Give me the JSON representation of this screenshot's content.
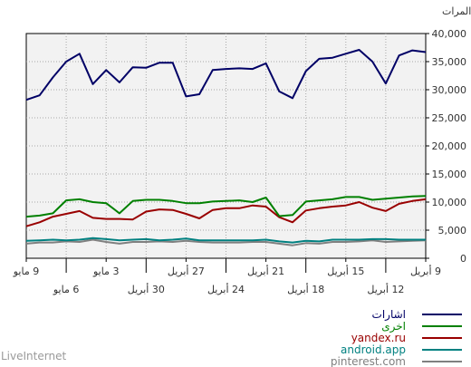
{
  "chart_data": {
    "type": "line",
    "ylabel": "المرات",
    "ylim": [
      0,
      40000
    ],
    "yticks": [
      0,
      5000,
      10000,
      15000,
      20000,
      25000,
      30000,
      35000,
      40000
    ],
    "ytick_labels": [
      "0",
      "5,000",
      "10,000",
      "15,000",
      "20,000",
      "25,000",
      "30,000",
      "35,000",
      "40,000"
    ],
    "xtick_labels_top": [
      "9 مايو",
      "3 مايو",
      "27 أبريل",
      "21 أبريل",
      "15 أبريل",
      "9 أبريل"
    ],
    "xtick_labels_bottom": [
      "6 مايو",
      "30 أبريل",
      "24 أبريل",
      "18 أبريل",
      "12 أبريل"
    ],
    "grid": true,
    "legend_position": "bottom-right",
    "series": [
      {
        "name": "اشارات",
        "color": "#000066",
        "values": [
          28200,
          29000,
          32200,
          35000,
          36400,
          31000,
          33500,
          31300,
          34000,
          33900,
          34800,
          34800,
          28800,
          29200,
          33500,
          33700,
          33800,
          33700,
          34700,
          29700,
          28500,
          33300,
          35500,
          35700,
          36400,
          37100,
          35000,
          31100,
          36100,
          37000,
          36700
        ]
      },
      {
        "name": "اخرى",
        "color": "#008000",
        "values": [
          7400,
          7600,
          8000,
          10300,
          10500,
          10000,
          9800,
          8000,
          10200,
          10400,
          10400,
          10200,
          9800,
          9800,
          10100,
          10200,
          10300,
          10000,
          10800,
          7500,
          7700,
          10100,
          10300,
          10500,
          10900,
          10900,
          10400,
          10600,
          10800,
          11000,
          11100
        ]
      },
      {
        "name": "yandex.ru",
        "color": "#990000",
        "values": [
          5700,
          6400,
          7400,
          7900,
          8400,
          7200,
          7000,
          7000,
          6900,
          8300,
          8700,
          8600,
          7900,
          7100,
          8600,
          8900,
          8900,
          9400,
          9200,
          7300,
          6400,
          8500,
          8900,
          9200,
          9400,
          10000,
          9000,
          8400,
          9700,
          10200,
          10500
        ]
      },
      {
        "name": "android.app",
        "color": "#008080",
        "values": [
          3100,
          3200,
          3300,
          3200,
          3300,
          3600,
          3400,
          3200,
          3300,
          3400,
          3200,
          3300,
          3500,
          3200,
          3200,
          3200,
          3200,
          3200,
          3300,
          3000,
          2800,
          3100,
          3000,
          3300,
          3300,
          3300,
          3400,
          3400,
          3300,
          3300,
          3300
        ]
      },
      {
        "name": "pinterest.com",
        "color": "#808080",
        "values": [
          2600,
          2800,
          2800,
          3000,
          2900,
          3300,
          2900,
          2600,
          2900,
          2900,
          3000,
          2900,
          3100,
          2900,
          2800,
          2800,
          2800,
          2900,
          2900,
          2600,
          2300,
          2700,
          2600,
          2900,
          2900,
          3000,
          3200,
          2900,
          3000,
          3100,
          3200
        ]
      }
    ]
  },
  "brand": "LiveInternet"
}
